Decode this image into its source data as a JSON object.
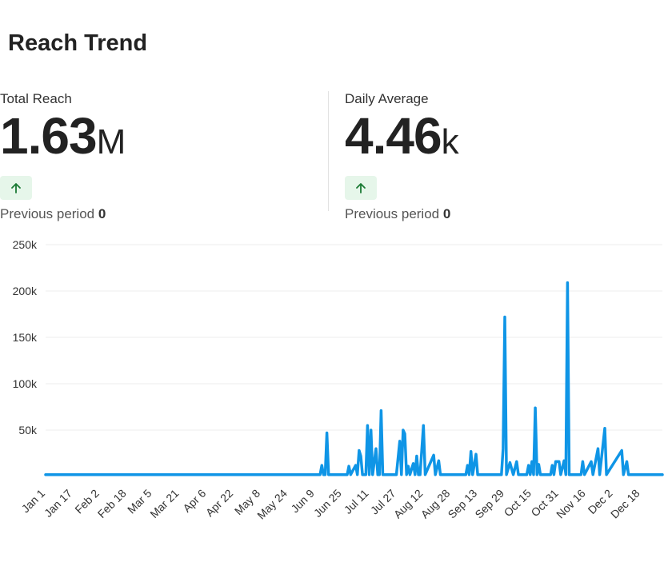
{
  "page": {
    "title": "Reach Trend"
  },
  "stats": [
    {
      "label": "Total Reach",
      "value": "1.63",
      "unit": "M",
      "trend": "up",
      "previous_label": "Previous period",
      "previous_value": "0"
    },
    {
      "label": "Daily Average",
      "value": "4.46",
      "unit": "k",
      "trend": "up",
      "previous_label": "Previous period",
      "previous_value": "0"
    }
  ],
  "colors": {
    "line": "#0f95e6",
    "badge_bg": "#e6f6ea",
    "badge_icon": "#1a7a34",
    "grid": "#ececec"
  },
  "chart_data": {
    "type": "line",
    "title": "",
    "xlabel": "",
    "ylabel": "",
    "ylim": [
      0,
      250000
    ],
    "y_ticks": [
      "250k",
      "200k",
      "150k",
      "100k",
      "50k"
    ],
    "y_tick_values": [
      250000,
      200000,
      150000,
      100000,
      50000
    ],
    "x_tick_labels": [
      "Jan 1",
      "Jan 17",
      "Feb 2",
      "Feb 18",
      "Mar 5",
      "Mar 21",
      "Apr 6",
      "Apr 22",
      "May 8",
      "May 24",
      "Jun 9",
      "Jun 25",
      "Jul 11",
      "Jul 27",
      "Aug 12",
      "Aug 28",
      "Sep 13",
      "Sep 29",
      "Oct 15",
      "Oct 31",
      "Nov 16",
      "Dec 2",
      "Dec 18"
    ],
    "grid": true,
    "legend": "none",
    "series": [
      {
        "points": [
          [
            "Jan 1",
            2000
          ],
          [
            "Jun 12",
            2000
          ],
          [
            "Jun 13",
            12000
          ],
          [
            "Jun 14",
            2000
          ],
          [
            "Jun 15",
            2000
          ],
          [
            "Jun 16",
            47000
          ],
          [
            "Jun 17",
            2000
          ],
          [
            "Jun 25",
            2000
          ],
          [
            "Jun 28",
            2000
          ],
          [
            "Jun 29",
            11000
          ],
          [
            "Jun 30",
            2000
          ],
          [
            "Jul 3",
            12000
          ],
          [
            "Jul 4",
            2000
          ],
          [
            "Jul 5",
            28000
          ],
          [
            "Jul 6",
            22000
          ],
          [
            "Jul 7",
            2000
          ],
          [
            "Jul 9",
            2000
          ],
          [
            "Jul 10",
            55000
          ],
          [
            "Jul 11",
            2000
          ],
          [
            "Jul 12",
            50000
          ],
          [
            "Jul 13",
            2000
          ],
          [
            "Jul 15",
            30000
          ],
          [
            "Jul 16",
            2000
          ],
          [
            "Jul 17",
            2000
          ],
          [
            "Jul 18",
            71000
          ],
          [
            "Jul 19",
            2000
          ],
          [
            "Jul 27",
            2000
          ],
          [
            "Jul 29",
            38000
          ],
          [
            "Jul 30",
            2000
          ],
          [
            "Jul 31",
            50000
          ],
          [
            "Aug 1",
            46000
          ],
          [
            "Aug 2",
            2000
          ],
          [
            "Aug 3",
            11000
          ],
          [
            "Aug 4",
            2000
          ],
          [
            "Aug 6",
            14000
          ],
          [
            "Aug 7",
            2000
          ],
          [
            "Aug 8",
            22000
          ],
          [
            "Aug 9",
            2000
          ],
          [
            "Aug 10",
            2000
          ],
          [
            "Aug 12",
            55000
          ],
          [
            "Aug 13",
            2000
          ],
          [
            "Aug 18",
            23000
          ],
          [
            "Aug 19",
            2000
          ],
          [
            "Aug 21",
            17000
          ],
          [
            "Aug 22",
            2000
          ],
          [
            "Sep 6",
            2000
          ],
          [
            "Sep 7",
            12000
          ],
          [
            "Sep 8",
            2000
          ],
          [
            "Sep 9",
            27000
          ],
          [
            "Sep 10",
            2000
          ],
          [
            "Sep 12",
            24000
          ],
          [
            "Sep 13",
            2000
          ],
          [
            "Sep 27",
            2000
          ],
          [
            "Sep 28",
            30000
          ],
          [
            "Sep 29",
            172000
          ],
          [
            "Sep 30",
            2000
          ],
          [
            "Oct 2",
            15000
          ],
          [
            "Oct 4",
            2000
          ],
          [
            "Oct 6",
            16000
          ],
          [
            "Oct 7",
            2000
          ],
          [
            "Oct 12",
            2000
          ],
          [
            "Oct 13",
            12000
          ],
          [
            "Oct 14",
            2000
          ],
          [
            "Oct 15",
            16000
          ],
          [
            "Oct 16",
            2000
          ],
          [
            "Oct 17",
            74000
          ],
          [
            "Oct 18",
            2000
          ],
          [
            "Oct 19",
            13000
          ],
          [
            "Oct 20",
            2000
          ],
          [
            "Oct 26",
            2000
          ],
          [
            "Oct 27",
            12000
          ],
          [
            "Oct 28",
            2000
          ],
          [
            "Oct 29",
            16000
          ],
          [
            "Oct 31",
            16000
          ],
          [
            "Nov 1",
            2000
          ],
          [
            "Nov 3",
            17000
          ],
          [
            "Nov 4",
            2000
          ],
          [
            "Nov 5",
            209000
          ],
          [
            "Nov 6",
            2000
          ],
          [
            "Nov 13",
            2000
          ],
          [
            "Nov 14",
            16000
          ],
          [
            "Nov 15",
            2000
          ],
          [
            "Nov 19",
            16000
          ],
          [
            "Nov 20",
            2000
          ],
          [
            "Nov 23",
            30000
          ],
          [
            "Nov 24",
            2000
          ],
          [
            "Nov 27",
            52000
          ],
          [
            "Nov 28",
            2000
          ],
          [
            "Dec 7",
            28000
          ],
          [
            "Dec 8",
            2000
          ],
          [
            "Dec 10",
            16000
          ],
          [
            "Dec 11",
            2000
          ],
          [
            "Dec 31",
            2000
          ]
        ]
      }
    ]
  }
}
